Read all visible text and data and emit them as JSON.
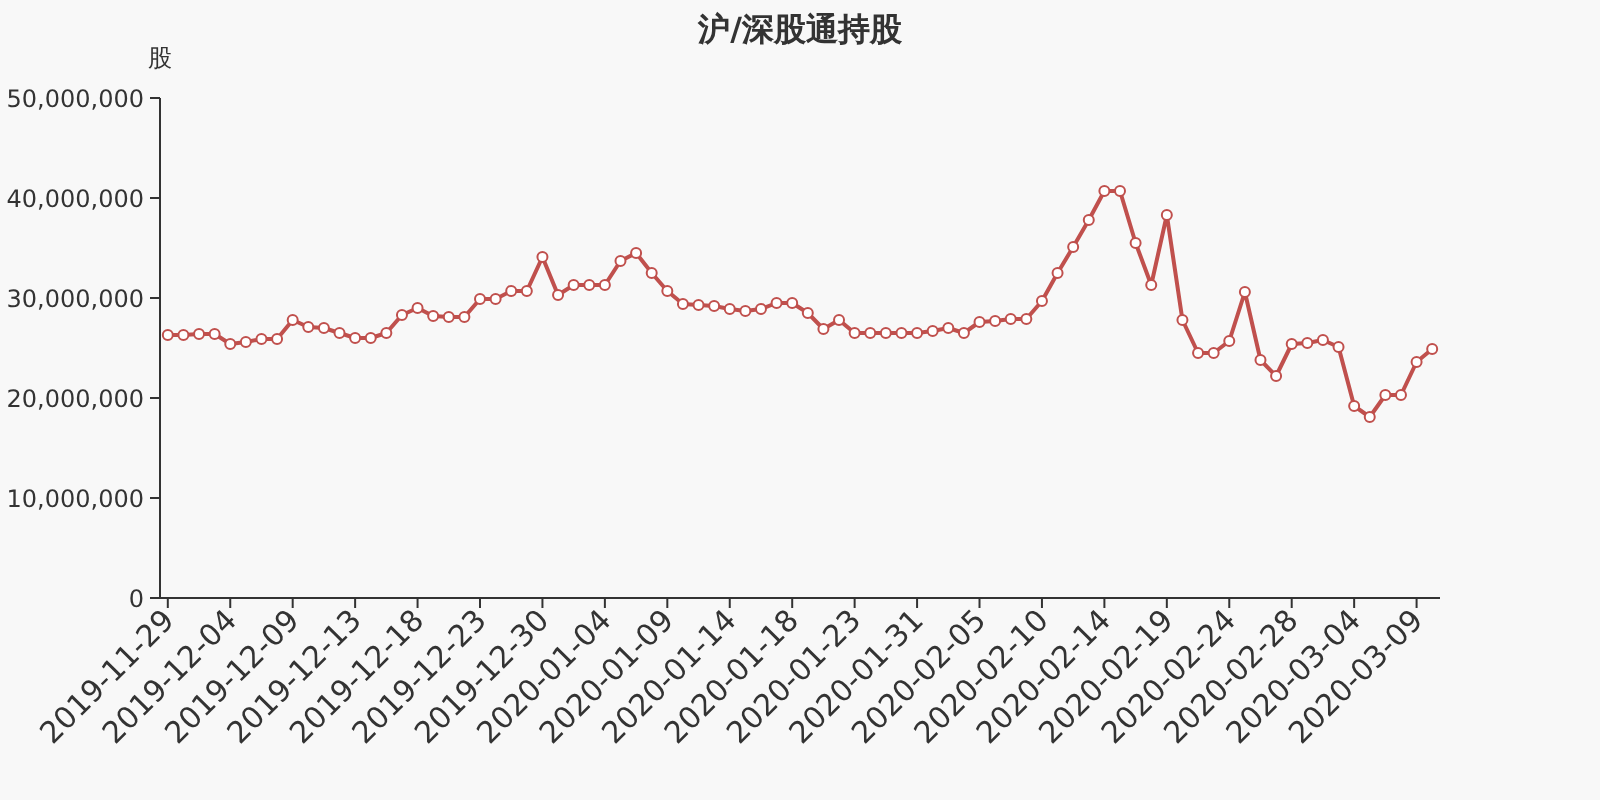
{
  "chart_data": {
    "type": "line",
    "title": "沪/深股通持股",
    "ylabel": "股",
    "categories": [
      "2019-11-29",
      null,
      null,
      null,
      "2019-12-04",
      null,
      null,
      null,
      "2019-12-09",
      null,
      null,
      null,
      "2019-12-13",
      null,
      null,
      null,
      "2019-12-18",
      null,
      null,
      null,
      "2019-12-23",
      null,
      null,
      null,
      "2019-12-30",
      null,
      null,
      null,
      "2020-01-04",
      null,
      null,
      null,
      "2020-01-09",
      null,
      null,
      null,
      "2020-01-14",
      null,
      null,
      null,
      "2020-01-18",
      null,
      null,
      null,
      "2020-01-23",
      null,
      null,
      null,
      "2020-01-31",
      null,
      null,
      null,
      "2020-02-05",
      null,
      null,
      null,
      "2020-02-10",
      null,
      null,
      null,
      "2020-02-14",
      null,
      null,
      null,
      "2020-02-19",
      null,
      null,
      null,
      "2020-02-24",
      null,
      null,
      null,
      "2020-02-28",
      null,
      null,
      null,
      "2020-03-04",
      null,
      null,
      null,
      "2020-03-09",
      null
    ],
    "series": [
      {
        "color": "#c0504d",
        "values": [
          26300000,
          26300000,
          26400000,
          26400000,
          25400000,
          25600000,
          25900000,
          25900000,
          27800000,
          27100000,
          27000000,
          26500000,
          26000000,
          26000000,
          26500000,
          28300000,
          29000000,
          28200000,
          28100000,
          28100000,
          29900000,
          29900000,
          30700000,
          30700000,
          34100000,
          30300000,
          31300000,
          31300000,
          31300000,
          33700000,
          34500000,
          32500000,
          30700000,
          29400000,
          29300000,
          29200000,
          28900000,
          28700000,
          28900000,
          29500000,
          29500000,
          28500000,
          26900000,
          27800000,
          26500000,
          26500000,
          26500000,
          26500000,
          26500000,
          26700000,
          27000000,
          26500000,
          27600000,
          27700000,
          27900000,
          27900000,
          29700000,
          32500000,
          35100000,
          37800000,
          40700000,
          40700000,
          35500000,
          31300000,
          38300000,
          27800000,
          24500000,
          24500000,
          25700000,
          30600000,
          23800000,
          22200000,
          25400000,
          25500000,
          25800000,
          25100000,
          19200000,
          18100000,
          20300000,
          20300000,
          23600000,
          24900000
        ]
      }
    ],
    "ylim": [
      0,
      50000000
    ],
    "yticks": [
      {
        "value": 0,
        "label": "0"
      },
      {
        "value": 10000000,
        "label": "10,000,000"
      },
      {
        "value": 20000000,
        "label": "20,000,000"
      },
      {
        "value": 30000000,
        "label": "30,000,000"
      },
      {
        "value": 40000000,
        "label": "40,000,000"
      },
      {
        "value": 50000000,
        "label": "50,000,000"
      }
    ],
    "marker": "circle",
    "line_style": "solid",
    "grid": false
  }
}
